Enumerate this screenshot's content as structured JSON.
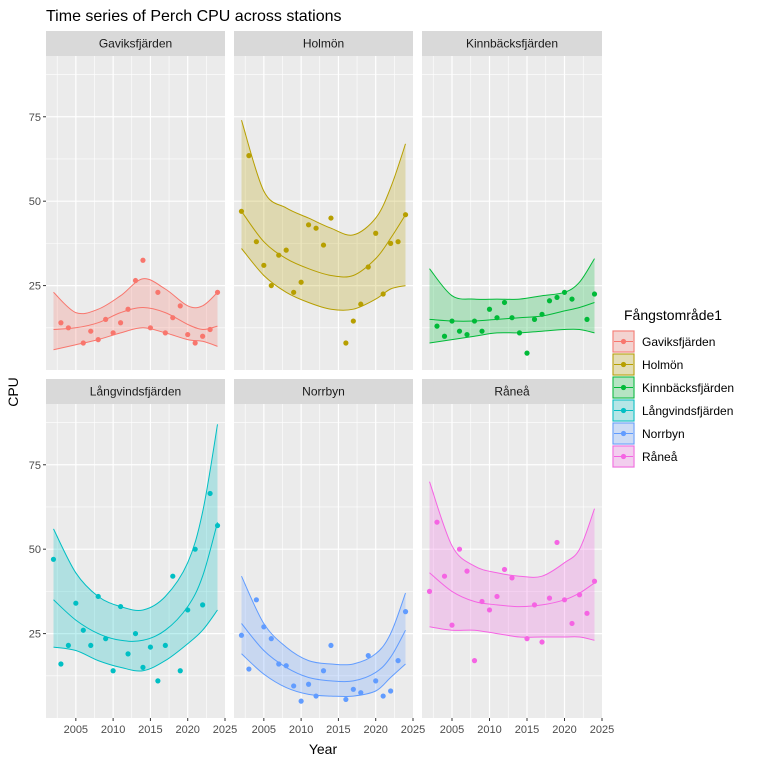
{
  "chart_data": {
    "type": "scatter",
    "title": "Time series of Perch CPU across stations",
    "xlabel": "Year",
    "ylabel": "CPU",
    "xlim": [
      2001,
      2025
    ],
    "ylim": [
      0,
      93
    ],
    "x_ticks": [
      2005,
      2010,
      2015,
      2020,
      2025
    ],
    "y_ticks": [
      25,
      50,
      75
    ],
    "grid": true,
    "legend_title": "Fångstområde1",
    "legend_position": "right",
    "facets": [
      {
        "name": "Gaviksfjärden",
        "color": "#F8766D",
        "points": [
          [
            2003,
            14
          ],
          [
            2004,
            12.5
          ],
          [
            2006,
            8
          ],
          [
            2007,
            11.5
          ],
          [
            2008,
            9
          ],
          [
            2009,
            15
          ],
          [
            2010,
            11
          ],
          [
            2011,
            14
          ],
          [
            2012,
            18
          ],
          [
            2013,
            26.5
          ],
          [
            2014,
            32.5
          ],
          [
            2015,
            12.5
          ],
          [
            2016,
            23
          ],
          [
            2017,
            11
          ],
          [
            2018,
            15.5
          ],
          [
            2019,
            19
          ],
          [
            2020,
            10.5
          ],
          [
            2021,
            8
          ],
          [
            2022,
            10
          ],
          [
            2023,
            12
          ],
          [
            2024,
            23
          ]
        ],
        "fit": [
          [
            2002,
            12
          ],
          [
            2005,
            12.5
          ],
          [
            2008,
            14
          ],
          [
            2011,
            17
          ],
          [
            2014,
            18.5
          ],
          [
            2017,
            17
          ],
          [
            2020,
            13.5
          ],
          [
            2022,
            12
          ],
          [
            2024,
            13
          ]
        ],
        "ci_upper": [
          [
            2002,
            23
          ],
          [
            2005,
            17
          ],
          [
            2008,
            18
          ],
          [
            2011,
            22
          ],
          [
            2014,
            27
          ],
          [
            2017,
            24
          ],
          [
            2020,
            19
          ],
          [
            2022,
            19
          ],
          [
            2024,
            23
          ]
        ],
        "ci_lower": [
          [
            2002,
            6
          ],
          [
            2005,
            7.5
          ],
          [
            2008,
            9
          ],
          [
            2011,
            11
          ],
          [
            2014,
            12.5
          ],
          [
            2017,
            11
          ],
          [
            2020,
            9
          ],
          [
            2022,
            8.5
          ],
          [
            2024,
            7
          ]
        ]
      },
      {
        "name": "Holmön",
        "color": "#B79F00",
        "points": [
          [
            2002,
            47
          ],
          [
            2003,
            63.5
          ],
          [
            2004,
            38
          ],
          [
            2005,
            31
          ],
          [
            2006,
            25
          ],
          [
            2007,
            34
          ],
          [
            2008,
            35.5
          ],
          [
            2009,
            23
          ],
          [
            2010,
            26
          ],
          [
            2011,
            43
          ],
          [
            2012,
            42
          ],
          [
            2013,
            37
          ],
          [
            2014,
            45
          ],
          [
            2016,
            8
          ],
          [
            2017,
            14.5
          ],
          [
            2018,
            19.5
          ],
          [
            2019,
            30.5
          ],
          [
            2020,
            40.5
          ],
          [
            2021,
            22.5
          ],
          [
            2022,
            37.5
          ],
          [
            2023,
            38
          ],
          [
            2024,
            46
          ]
        ],
        "fit": [
          [
            2002,
            47
          ],
          [
            2005,
            38
          ],
          [
            2008,
            33
          ],
          [
            2011,
            30
          ],
          [
            2014,
            28
          ],
          [
            2017,
            28
          ],
          [
            2020,
            33
          ],
          [
            2022,
            39
          ],
          [
            2024,
            46
          ]
        ],
        "ci_upper": [
          [
            2002,
            74
          ],
          [
            2005,
            53
          ],
          [
            2008,
            48
          ],
          [
            2011,
            45
          ],
          [
            2014,
            42
          ],
          [
            2017,
            40
          ],
          [
            2020,
            45
          ],
          [
            2022,
            54
          ],
          [
            2024,
            67
          ]
        ],
        "ci_lower": [
          [
            2002,
            36
          ],
          [
            2005,
            28
          ],
          [
            2008,
            23
          ],
          [
            2011,
            20
          ],
          [
            2014,
            18
          ],
          [
            2017,
            18
          ],
          [
            2020,
            21
          ],
          [
            2022,
            24
          ],
          [
            2024,
            25
          ]
        ]
      },
      {
        "name": "Kinnbäcksfjärden",
        "color": "#00BA38",
        "points": [
          [
            2003,
            13
          ],
          [
            2004,
            10
          ],
          [
            2005,
            14.5
          ],
          [
            2006,
            11.5
          ],
          [
            2007,
            10.5
          ],
          [
            2008,
            14.5
          ],
          [
            2009,
            11.5
          ],
          [
            2010,
            18
          ],
          [
            2011,
            15.5
          ],
          [
            2012,
            20
          ],
          [
            2013,
            15.5
          ],
          [
            2014,
            11
          ],
          [
            2015,
            5
          ],
          [
            2016,
            15
          ],
          [
            2017,
            16.5
          ],
          [
            2018,
            20.5
          ],
          [
            2019,
            21.5
          ],
          [
            2020,
            23
          ],
          [
            2021,
            21
          ],
          [
            2023,
            15
          ],
          [
            2024,
            22.5
          ]
        ],
        "fit": [
          [
            2002,
            15
          ],
          [
            2005,
            14.5
          ],
          [
            2008,
            14.5
          ],
          [
            2011,
            15
          ],
          [
            2014,
            15.5
          ],
          [
            2017,
            16
          ],
          [
            2020,
            17.5
          ],
          [
            2022,
            18.5
          ],
          [
            2024,
            20
          ]
        ],
        "ci_upper": [
          [
            2002,
            30
          ],
          [
            2005,
            22
          ],
          [
            2008,
            21
          ],
          [
            2011,
            21
          ],
          [
            2014,
            21
          ],
          [
            2017,
            22
          ],
          [
            2020,
            23
          ],
          [
            2022,
            26
          ],
          [
            2024,
            33
          ]
        ],
        "ci_lower": [
          [
            2002,
            8
          ],
          [
            2005,
            9
          ],
          [
            2008,
            10
          ],
          [
            2011,
            11
          ],
          [
            2014,
            11
          ],
          [
            2017,
            11.5
          ],
          [
            2020,
            12
          ],
          [
            2022,
            12
          ],
          [
            2024,
            11
          ]
        ]
      },
      {
        "name": "Långvindsfjärden",
        "color": "#00BFC4",
        "points": [
          [
            2002,
            47
          ],
          [
            2003,
            16
          ],
          [
            2004,
            21.5
          ],
          [
            2005,
            34
          ],
          [
            2006,
            26
          ],
          [
            2007,
            21.5
          ],
          [
            2008,
            36
          ],
          [
            2009,
            23.5
          ],
          [
            2010,
            14
          ],
          [
            2011,
            33
          ],
          [
            2012,
            19
          ],
          [
            2013,
            25
          ],
          [
            2014,
            15
          ],
          [
            2015,
            21
          ],
          [
            2016,
            11
          ],
          [
            2017,
            21.5
          ],
          [
            2018,
            42
          ],
          [
            2019,
            14
          ],
          [
            2020,
            32
          ],
          [
            2021,
            50
          ],
          [
            2022,
            33.5
          ],
          [
            2023,
            66.5
          ],
          [
            2024,
            57
          ]
        ],
        "fit": [
          [
            2002,
            35
          ],
          [
            2005,
            29
          ],
          [
            2008,
            25
          ],
          [
            2011,
            23
          ],
          [
            2014,
            23
          ],
          [
            2017,
            26
          ],
          [
            2020,
            33
          ],
          [
            2022,
            42
          ],
          [
            2024,
            58
          ]
        ],
        "ci_upper": [
          [
            2002,
            56
          ],
          [
            2005,
            43
          ],
          [
            2008,
            36
          ],
          [
            2011,
            33
          ],
          [
            2014,
            32
          ],
          [
            2017,
            36
          ],
          [
            2020,
            46
          ],
          [
            2022,
            61
          ],
          [
            2024,
            87
          ]
        ],
        "ci_lower": [
          [
            2002,
            21
          ],
          [
            2005,
            20
          ],
          [
            2008,
            17
          ],
          [
            2011,
            15
          ],
          [
            2014,
            14
          ],
          [
            2017,
            17
          ],
          [
            2020,
            22
          ],
          [
            2022,
            26
          ],
          [
            2024,
            32
          ]
        ]
      },
      {
        "name": "Norrbyn",
        "color": "#619CFF",
        "points": [
          [
            2002,
            24.5
          ],
          [
            2003,
            14.5
          ],
          [
            2004,
            35
          ],
          [
            2005,
            27
          ],
          [
            2006,
            23.5
          ],
          [
            2007,
            16
          ],
          [
            2008,
            15.5
          ],
          [
            2009,
            9.5
          ],
          [
            2010,
            5
          ],
          [
            2011,
            10
          ],
          [
            2012,
            6.5
          ],
          [
            2013,
            14
          ],
          [
            2014,
            21.5
          ],
          [
            2016,
            5.5
          ],
          [
            2017,
            8.5
          ],
          [
            2018,
            7.5
          ],
          [
            2019,
            18.5
          ],
          [
            2020,
            11
          ],
          [
            2021,
            6.5
          ],
          [
            2022,
            8
          ],
          [
            2023,
            17
          ],
          [
            2024,
            31.5
          ]
        ],
        "fit": [
          [
            2002,
            28
          ],
          [
            2005,
            20
          ],
          [
            2008,
            15
          ],
          [
            2011,
            12
          ],
          [
            2014,
            11
          ],
          [
            2017,
            11
          ],
          [
            2020,
            13.5
          ],
          [
            2022,
            18
          ],
          [
            2024,
            26
          ]
        ],
        "ci_upper": [
          [
            2002,
            42
          ],
          [
            2005,
            28
          ],
          [
            2008,
            21
          ],
          [
            2011,
            17
          ],
          [
            2014,
            16
          ],
          [
            2017,
            16
          ],
          [
            2020,
            19
          ],
          [
            2022,
            25
          ],
          [
            2024,
            37
          ]
        ],
        "ci_lower": [
          [
            2002,
            19
          ],
          [
            2005,
            13
          ],
          [
            2008,
            9
          ],
          [
            2011,
            7
          ],
          [
            2014,
            6.5
          ],
          [
            2017,
            6.5
          ],
          [
            2020,
            8
          ],
          [
            2022,
            12
          ],
          [
            2024,
            16
          ]
        ]
      },
      {
        "name": "Råneå",
        "color": "#F564E3",
        "points": [
          [
            2002,
            37.5
          ],
          [
            2003,
            58
          ],
          [
            2004,
            42
          ],
          [
            2005,
            27.5
          ],
          [
            2006,
            50
          ],
          [
            2007,
            43.5
          ],
          [
            2008,
            17
          ],
          [
            2009,
            34.5
          ],
          [
            2010,
            32
          ],
          [
            2011,
            36
          ],
          [
            2012,
            44
          ],
          [
            2013,
            41.5
          ],
          [
            2015,
            23.5
          ],
          [
            2016,
            33.5
          ],
          [
            2017,
            22.5
          ],
          [
            2018,
            35.5
          ],
          [
            2019,
            52
          ],
          [
            2020,
            35
          ],
          [
            2021,
            28
          ],
          [
            2022,
            36.5
          ],
          [
            2023,
            31
          ],
          [
            2024,
            40.5
          ]
        ],
        "fit": [
          [
            2002,
            43
          ],
          [
            2005,
            37.5
          ],
          [
            2008,
            34.5
          ],
          [
            2011,
            33.5
          ],
          [
            2014,
            33
          ],
          [
            2017,
            33.5
          ],
          [
            2020,
            35
          ],
          [
            2022,
            37
          ],
          [
            2024,
            40
          ]
        ],
        "ci_upper": [
          [
            2002,
            70
          ],
          [
            2005,
            51
          ],
          [
            2008,
            45
          ],
          [
            2011,
            43
          ],
          [
            2014,
            42
          ],
          [
            2017,
            42
          ],
          [
            2020,
            46
          ],
          [
            2022,
            50
          ],
          [
            2024,
            62
          ]
        ],
        "ci_lower": [
          [
            2002,
            27
          ],
          [
            2005,
            26
          ],
          [
            2008,
            26
          ],
          [
            2011,
            25
          ],
          [
            2014,
            24
          ],
          [
            2017,
            24
          ],
          [
            2020,
            24
          ],
          [
            2022,
            24
          ],
          [
            2024,
            23
          ]
        ]
      }
    ]
  }
}
